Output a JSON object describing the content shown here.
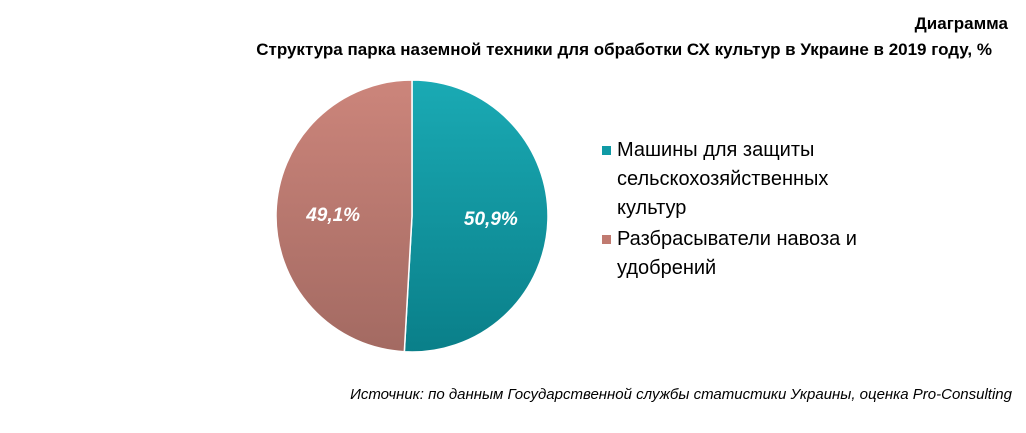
{
  "header": {
    "label": "Диаграмма"
  },
  "chart_data": {
    "type": "pie",
    "title": "Структура парка наземной техники для обработки СХ культур в Украине в 2019 году, %",
    "categories": [
      "Машины для защиты сельскохозяйственных культур",
      "Разбрасыватели навоза и удобрений"
    ],
    "values": [
      50.9,
      49.1
    ],
    "data_labels": [
      "50,9%",
      "49,1%"
    ],
    "colors": [
      "#0f9aa5",
      "#c07a70"
    ],
    "legend_position": "right"
  },
  "footer": {
    "source": "Источник: по данным Государственной службы статистики Украины, оценка Pro-Consulting"
  }
}
